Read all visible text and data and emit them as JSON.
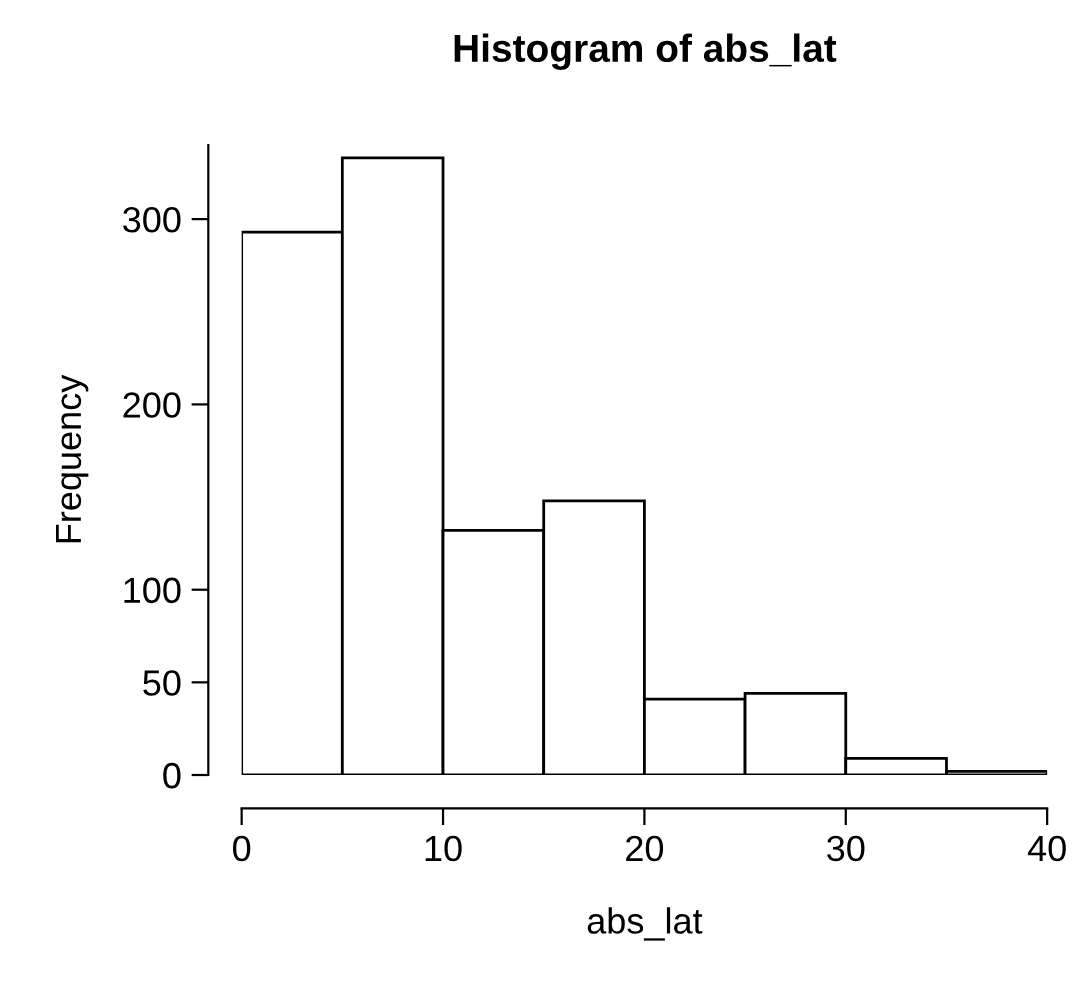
{
  "chart_data": {
    "type": "histogram",
    "title": "Histogram of abs_lat",
    "xlabel": "abs_lat",
    "ylabel": "Frequency",
    "bins": [
      0,
      5,
      10,
      15,
      20,
      25,
      30,
      35,
      40
    ],
    "values": [
      293,
      333,
      132,
      148,
      41,
      44,
      9,
      2
    ],
    "color": "#ffffff",
    "xlim": [
      0,
      40
    ],
    "ylim": [
      0,
      340
    ],
    "xticks": [
      0,
      10,
      20,
      30,
      40
    ],
    "yticks": [
      0,
      50,
      100,
      200,
      300
    ],
    "grid": false
  }
}
